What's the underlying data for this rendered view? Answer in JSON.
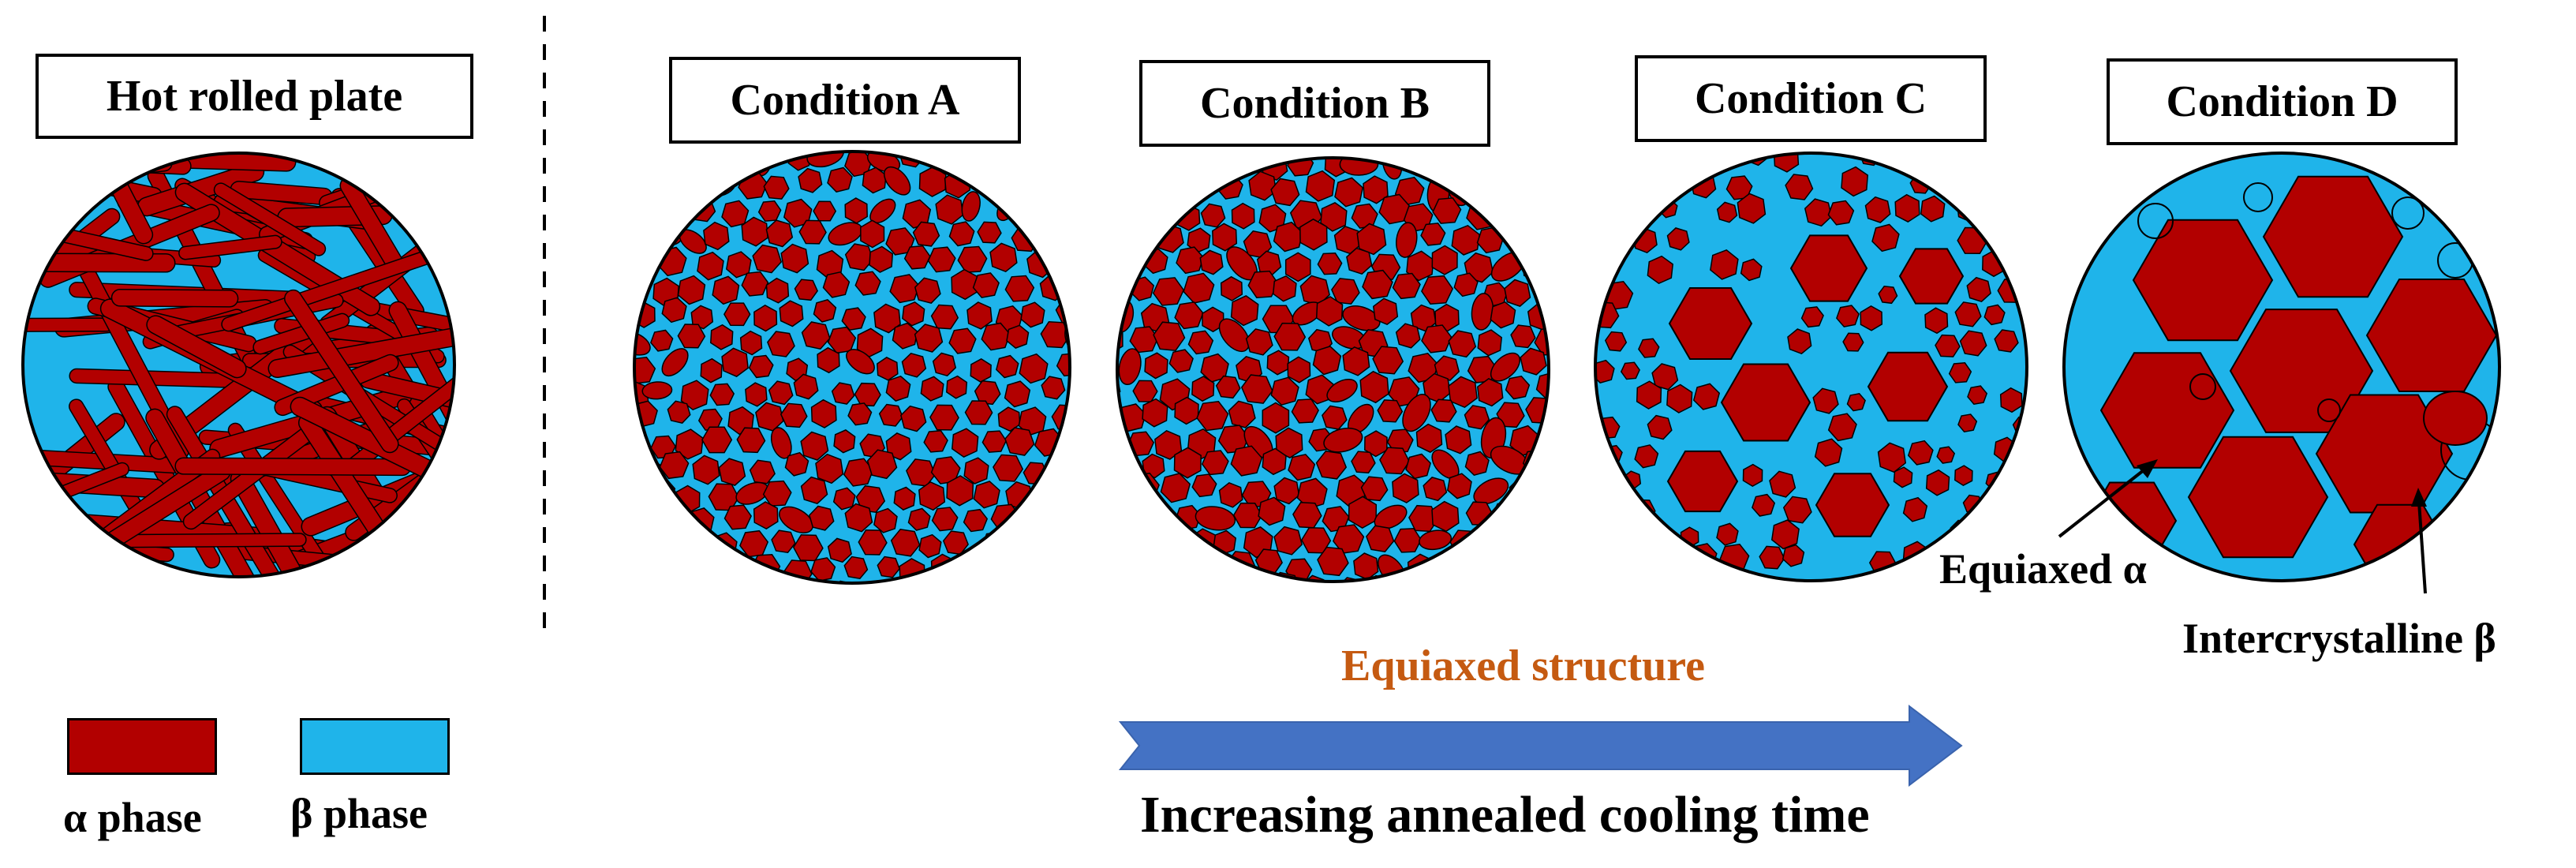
{
  "colors": {
    "alpha": "#b20000",
    "beta": "#1fb4ea",
    "arrow": "#4472c4",
    "accent_text": "#c55a11",
    "outline": "#000000"
  },
  "panels": [
    {
      "id": "hot",
      "title": "Hot rolled plate",
      "structure": "lamellar"
    },
    {
      "id": "a",
      "title": "Condition A",
      "structure": "fine-equiaxed"
    },
    {
      "id": "b",
      "title": "Condition B",
      "structure": "fine-equiaxed-dense"
    },
    {
      "id": "c",
      "title": "Condition C",
      "structure": "mixed-hexagonal"
    },
    {
      "id": "d",
      "title": "Condition D",
      "structure": "coarse-hexagonal"
    }
  ],
  "annotations": {
    "equiaxed_alpha": "Equiaxed α",
    "intercrystalline_beta": "Intercrystalline β"
  },
  "legend": {
    "alpha_label": "α phase",
    "beta_label": "β phase"
  },
  "process": {
    "structure_label": "Equiaxed structure",
    "arrow_label": "Increasing annealed cooling time"
  }
}
